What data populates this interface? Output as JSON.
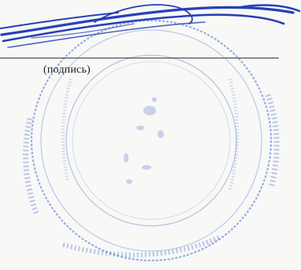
{
  "signature": {
    "caption": "(подпись)"
  },
  "seal": {
    "ink_color": "#3f63c4",
    "signature_ink_color": "#2740b8"
  }
}
